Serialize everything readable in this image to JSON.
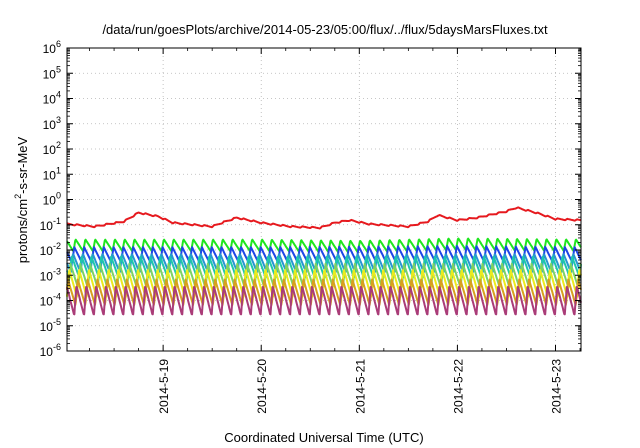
{
  "chart_data": {
    "type": "line",
    "title": "/data/run/goesPlots/archive/2014-05-23/05:00/flux/../flux/5daysMarsFluxes.txt",
    "xlabel": "Coordinated Universal Time (UTC)",
    "ylabel_parts": [
      "protons/cm",
      "2",
      "-s-sr-MeV"
    ],
    "y_scale": "log",
    "ylim_exp": [
      -6,
      6
    ],
    "y_tick_exponents": [
      -6,
      -5,
      -4,
      -3,
      -2,
      -1,
      0,
      1,
      2,
      3,
      4,
      5,
      6
    ],
    "x_unit": "days (2014-05-18 00:00 UTC = 0)",
    "xlim": [
      0.02,
      5.26
    ],
    "x_ticks": [
      {
        "x": 1.0,
        "label": "2014-5-19"
      },
      {
        "x": 2.0,
        "label": "2014-5-20"
      },
      {
        "x": 3.0,
        "label": "2014-5-21"
      },
      {
        "x": 4.0,
        "label": "2014-5-22"
      },
      {
        "x": 5.0,
        "label": "2014-5-23"
      }
    ],
    "grid": true,
    "cycle_period_days": 0.1,
    "series": [
      {
        "color": "#e6191e",
        "log_base": [
          [
            0.02,
            -1.0
          ],
          [
            0.3,
            -1.1
          ],
          [
            0.6,
            -0.9
          ],
          [
            0.75,
            -0.55
          ],
          [
            0.95,
            -0.7
          ],
          [
            1.1,
            -0.95
          ],
          [
            1.5,
            -1.1
          ],
          [
            1.6,
            -0.95
          ],
          [
            1.75,
            -0.75
          ],
          [
            2.0,
            -0.95
          ],
          [
            2.3,
            -1.1
          ],
          [
            2.6,
            -1.15
          ],
          [
            2.75,
            -0.95
          ],
          [
            2.9,
            -0.85
          ],
          [
            3.1,
            -1.0
          ],
          [
            3.5,
            -1.1
          ],
          [
            3.7,
            -0.9
          ],
          [
            3.8,
            -0.65
          ],
          [
            4.0,
            -0.85
          ],
          [
            4.2,
            -0.75
          ],
          [
            4.5,
            -0.5
          ],
          [
            4.6,
            -0.35
          ],
          [
            4.8,
            -0.55
          ],
          [
            5.0,
            -0.8
          ],
          [
            5.26,
            -0.85
          ]
        ],
        "spike": 0.06
      },
      {
        "color": "#1ee61e",
        "log_base": [
          [
            0.02,
            -2.05
          ],
          [
            2.0,
            -2.05
          ],
          [
            3.0,
            -2.1
          ],
          [
            4.0,
            -2.0
          ],
          [
            5.26,
            -2.05
          ]
        ],
        "spike": 0.5
      },
      {
        "color": "#1e46e6",
        "log_base": [
          [
            0.02,
            -2.5
          ],
          [
            2.0,
            -2.5
          ],
          [
            4.0,
            -2.45
          ],
          [
            5.26,
            -2.5
          ]
        ],
        "spike": 0.65
      },
      {
        "color": "#2896d2",
        "log_base": [
          [
            0.02,
            -2.9
          ],
          [
            5.26,
            -2.9
          ]
        ],
        "spike": 0.8
      },
      {
        "color": "#1ec8aa",
        "log_base": [
          [
            0.02,
            -3.1
          ],
          [
            5.26,
            -3.1
          ]
        ],
        "spike": 0.9
      },
      {
        "color": "#7dd264",
        "log_base": [
          [
            0.02,
            -3.5
          ],
          [
            5.26,
            -3.5
          ]
        ],
        "spike": 1.0
      },
      {
        "color": "#ebeb1e",
        "log_base": [
          [
            0.02,
            -3.85
          ],
          [
            5.26,
            -3.85
          ]
        ],
        "spike": 1.15
      },
      {
        "color": "#d7a01e",
        "log_base": [
          [
            0.02,
            -4.2
          ],
          [
            5.26,
            -4.2
          ]
        ],
        "spike": 1.1
      },
      {
        "color": "#aa3c78",
        "log_base": [
          [
            0.02,
            -4.6
          ],
          [
            5.26,
            -4.6
          ]
        ],
        "spike": 1.25
      }
    ]
  }
}
